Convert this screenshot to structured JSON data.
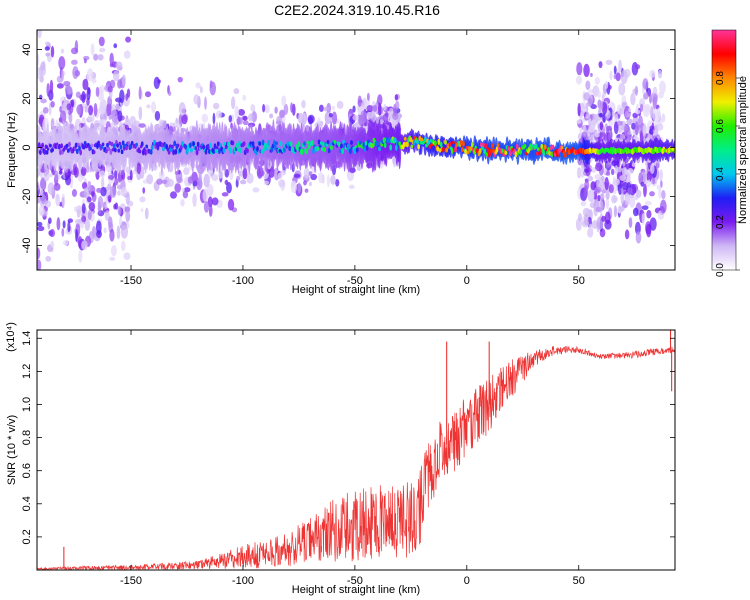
{
  "title": "C2E2.2024.319.10.45.R16",
  "chart_data": [
    {
      "type": "heatmap",
      "title": "C2E2.2024.319.10.45.R16",
      "xlabel": "Height of straight line (km)",
      "ylabel": "Frequency (Hz)",
      "xlim": [
        -192,
        93
      ],
      "ylim": [
        -50,
        48
      ],
      "xticks": [
        -150,
        -100,
        -50,
        0,
        50
      ],
      "yticks": [
        -40,
        -20,
        0,
        20,
        40
      ],
      "colorbar": {
        "label": "Normalized spectral amplitude",
        "range": [
          0,
          1
        ],
        "ticks": [
          "0.0",
          "0.2",
          "0.4",
          "0.6",
          "0.8"
        ],
        "colors": [
          "#ffffff",
          "#cfb8f5",
          "#7a1bf0",
          "#1e1ef5",
          "#00c8f0",
          "#00ee88",
          "#22ee00",
          "#f0f000",
          "#ff8800",
          "#ff0000",
          "#ff3399"
        ]
      },
      "main_band": {
        "center_freq_hz": [
          {
            "x": -190,
            "f": 0
          },
          {
            "x": -100,
            "f": 0
          },
          {
            "x": -50,
            "f": 0.5
          },
          {
            "x": -30,
            "f": 2
          },
          {
            "x": -25,
            "f": 2.5
          },
          {
            "x": -10,
            "f": 0.5
          },
          {
            "x": 0,
            "f": 0
          },
          {
            "x": 10,
            "f": -1
          },
          {
            "x": 50,
            "f": -1.5
          },
          {
            "x": 93,
            "f": -1
          }
        ],
        "peak_amplitude": [
          {
            "x": -190,
            "a": 0.25
          },
          {
            "x": -150,
            "a": 0.3
          },
          {
            "x": -100,
            "a": 0.4
          },
          {
            "x": -50,
            "a": 0.5
          },
          {
            "x": -30,
            "a": 0.6
          },
          {
            "x": -20,
            "a": 0.8
          },
          {
            "x": 0,
            "a": 0.9
          },
          {
            "x": 50,
            "a": 0.95
          },
          {
            "x": 60,
            "a": 0.6
          },
          {
            "x": 93,
            "a": 0.7
          }
        ]
      },
      "scatter_regions": [
        {
          "x_range": [
            -192,
            -150
          ],
          "f_range": [
            -50,
            48
          ],
          "density": "high"
        },
        {
          "x_range": [
            -150,
            -100
          ],
          "f_range": [
            -30,
            30
          ],
          "density": "medium"
        },
        {
          "x_range": [
            -100,
            -50
          ],
          "f_range": [
            -20,
            22
          ],
          "density": "medium"
        },
        {
          "x_range": [
            -50,
            -30
          ],
          "f_range": [
            -10,
            22
          ],
          "density": "medium"
        },
        {
          "x_range": [
            50,
            88
          ],
          "f_range": [
            -40,
            38
          ],
          "density": "high"
        }
      ]
    },
    {
      "type": "line",
      "xlabel": "Height of straight line (km)",
      "ylabel": "SNR (10 * v/v)",
      "y_multiplier": "(x10⁴)",
      "xlim": [
        -192,
        93
      ],
      "ylim": [
        0,
        1.45
      ],
      "xticks": [
        -150,
        -100,
        -50,
        0,
        50
      ],
      "yticks": [
        "0.2",
        "0.4",
        "0.6",
        "0.8",
        "1.0",
        "1.2",
        "1.4"
      ],
      "color": "#ee3333",
      "series": [
        {
          "envelope": [
            {
              "x": -192,
              "base": 0.005,
              "amp": 0.006
            },
            {
              "x": -180,
              "base": 0.01,
              "amp": 0.01
            },
            {
              "x": -150,
              "base": 0.015,
              "amp": 0.015
            },
            {
              "x": -120,
              "base": 0.03,
              "amp": 0.025
            },
            {
              "x": -100,
              "base": 0.08,
              "amp": 0.07
            },
            {
              "x": -80,
              "base": 0.12,
              "amp": 0.1
            },
            {
              "x": -65,
              "base": 0.22,
              "amp": 0.17
            },
            {
              "x": -50,
              "base": 0.27,
              "amp": 0.22
            },
            {
              "x": -35,
              "base": 0.3,
              "amp": 0.22
            },
            {
              "x": -22,
              "base": 0.3,
              "amp": 0.24
            },
            {
              "x": -18,
              "base": 0.55,
              "amp": 0.2
            },
            {
              "x": -10,
              "base": 0.75,
              "amp": 0.2
            },
            {
              "x": 0,
              "base": 0.85,
              "amp": 0.2
            },
            {
              "x": 10,
              "base": 1.0,
              "amp": 0.17
            },
            {
              "x": 20,
              "base": 1.15,
              "amp": 0.12
            },
            {
              "x": 30,
              "base": 1.28,
              "amp": 0.05
            },
            {
              "x": 40,
              "base": 1.33,
              "amp": 0.03
            },
            {
              "x": 50,
              "base": 1.33,
              "amp": 0.02
            },
            {
              "x": 60,
              "base": 1.29,
              "amp": 0.015
            },
            {
              "x": 75,
              "base": 1.3,
              "amp": 0.02
            },
            {
              "x": 85,
              "base": 1.32,
              "amp": 0.02
            },
            {
              "x": 93,
              "base": 1.33,
              "amp": 0.02
            }
          ],
          "spikes": [
            {
              "x": -180,
              "y": 0.14
            },
            {
              "x": -9,
              "y": 1.38
            },
            {
              "x": 10,
              "y": 1.38
            },
            {
              "x": 91,
              "y": 1.45
            },
            {
              "x": 91.5,
              "y": 1.08
            }
          ]
        }
      ]
    }
  ]
}
